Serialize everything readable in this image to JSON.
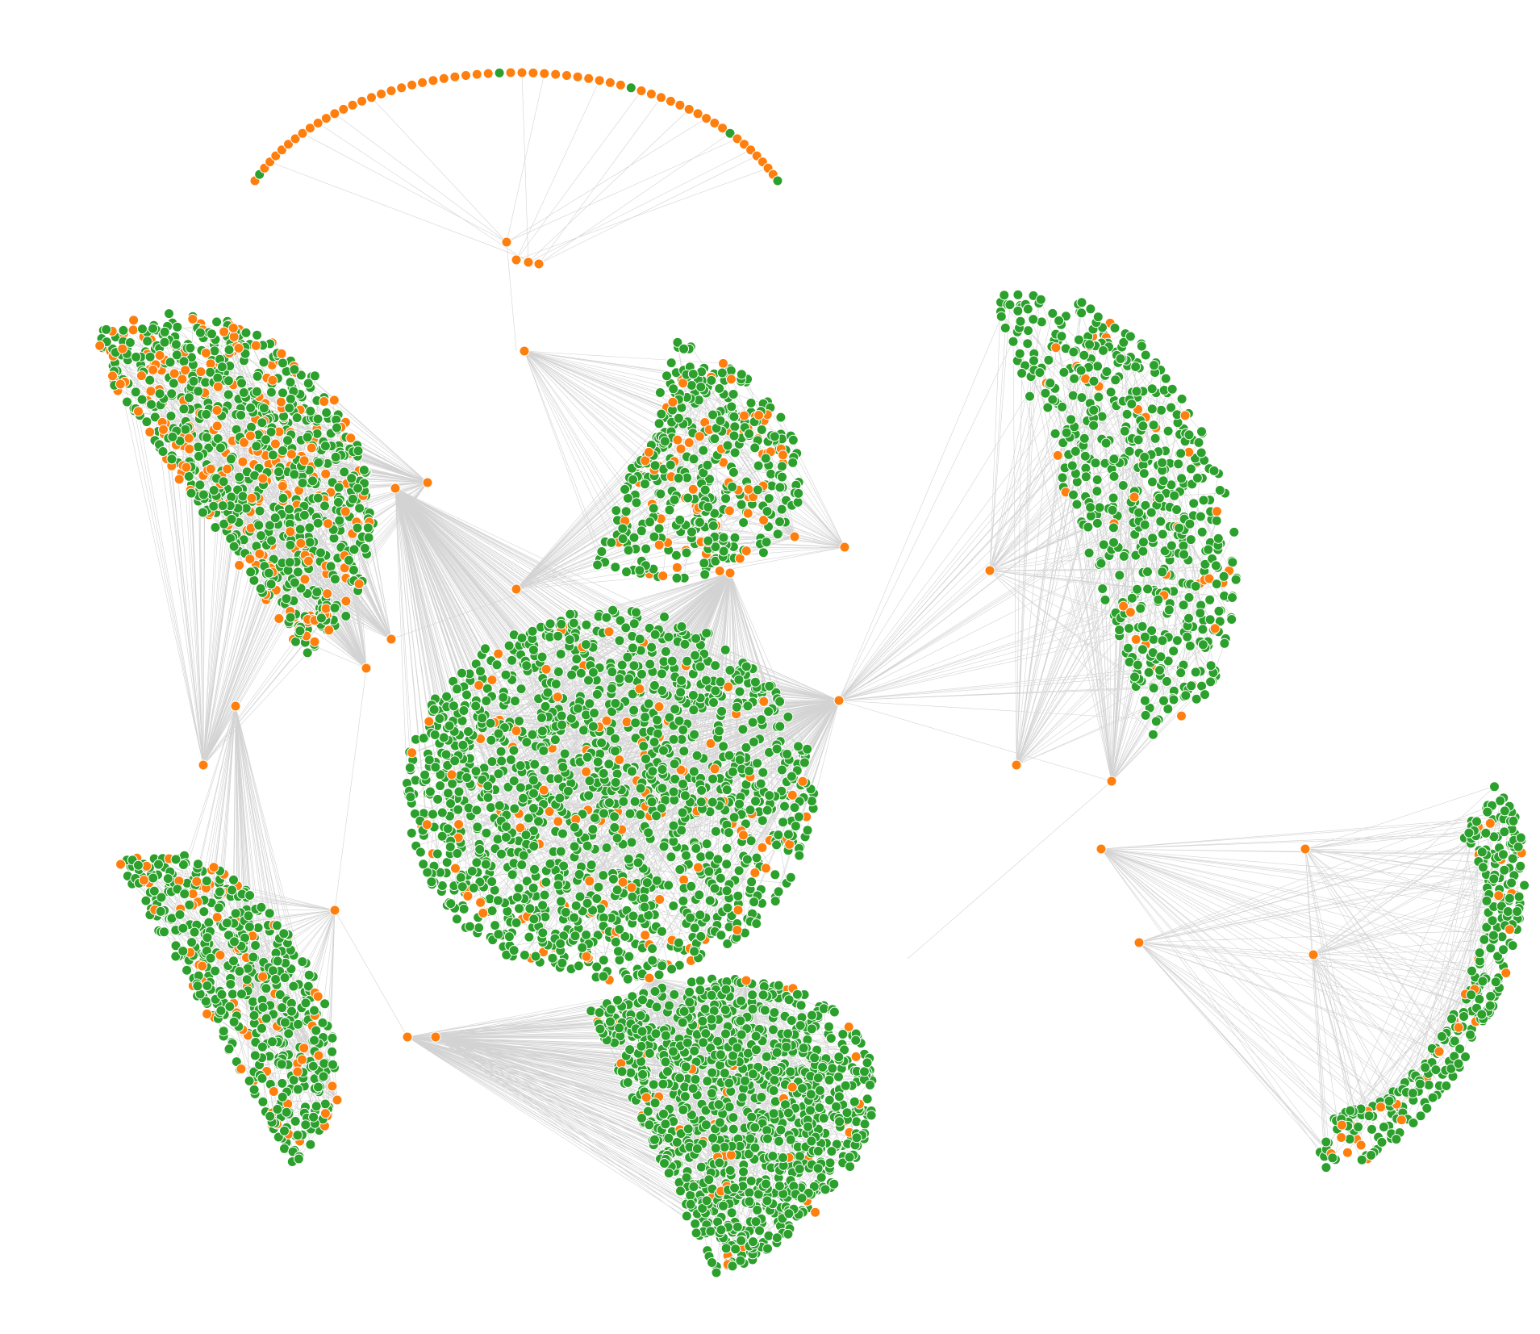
{
  "graph": {
    "type": "network",
    "node_colors": {
      "group_a": "#ff7f0e",
      "group_b": "#2ca02c"
    },
    "node_outline": "#ffffff",
    "edge_color": "#808080",
    "background": "#ffffff",
    "clusters": [
      {
        "name": "top-arc",
        "shape": "arc",
        "dominant": "group_a"
      },
      {
        "name": "upper-left",
        "shape": "half-disc",
        "dominant": "group_b"
      },
      {
        "name": "upper-center",
        "shape": "half-disc",
        "dominant": "group_b"
      },
      {
        "name": "upper-right",
        "shape": "half-disc",
        "dominant": "group_b"
      },
      {
        "name": "center",
        "shape": "disc",
        "dominant": "group_b"
      },
      {
        "name": "lower-left",
        "shape": "half-disc",
        "dominant": "group_b"
      },
      {
        "name": "bottom-center",
        "shape": "half-disc",
        "dominant": "group_b"
      },
      {
        "name": "right",
        "shape": "crescent",
        "dominant": "group_b"
      }
    ]
  }
}
